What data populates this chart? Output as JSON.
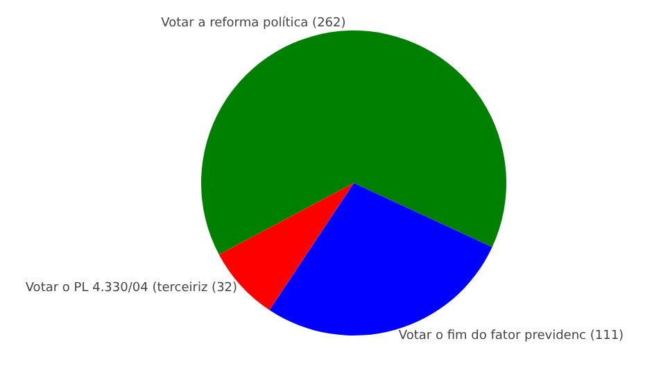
{
  "chart_data": {
    "type": "pie",
    "categories": [
      "Votar a reforma política (262)",
      "Votar o fim do fator previdenc (111)",
      "Votar o PL 4.330/04 (terceiriz (32)"
    ],
    "values": [
      262,
      111,
      32
    ],
    "colors": [
      "#008000",
      "#0000ff",
      "#ff0000"
    ]
  }
}
